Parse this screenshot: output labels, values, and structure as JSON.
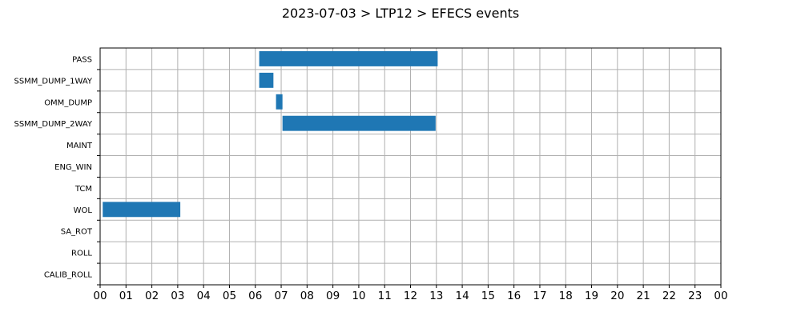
{
  "chart_data": {
    "type": "bar",
    "orientation": "horizontal-timeline",
    "title": "2023-07-03 > LTP12 > EFECS events",
    "xlabel": "",
    "ylabel": "",
    "categories": [
      "PASS",
      "SSMM_DUMP_1WAY",
      "OMM_DUMP",
      "SSMM_DUMP_2WAY",
      "MAINT",
      "ENG_WIN",
      "TCM",
      "WOL",
      "SA_ROT",
      "ROLL",
      "CALIB_ROLL"
    ],
    "x_tick_labels": [
      "00",
      "01",
      "02",
      "03",
      "04",
      "05",
      "06",
      "07",
      "08",
      "09",
      "10",
      "11",
      "12",
      "13",
      "14",
      "15",
      "16",
      "17",
      "18",
      "19",
      "20",
      "21",
      "22",
      "23",
      "00"
    ],
    "xlim_hours": [
      0,
      24
    ],
    "grid": true,
    "bar_color": "#1f77b4",
    "series": [
      {
        "category": "PASS",
        "start_hour": 6.15,
        "end_hour": 13.05
      },
      {
        "category": "SSMM_DUMP_1WAY",
        "start_hour": 6.15,
        "end_hour": 6.7
      },
      {
        "category": "OMM_DUMP",
        "start_hour": 6.8,
        "end_hour": 7.05
      },
      {
        "category": "SSMM_DUMP_2WAY",
        "start_hour": 7.05,
        "end_hour": 12.97
      },
      {
        "category": "WOL",
        "start_hour": 0.1,
        "end_hour": 3.1
      }
    ]
  }
}
